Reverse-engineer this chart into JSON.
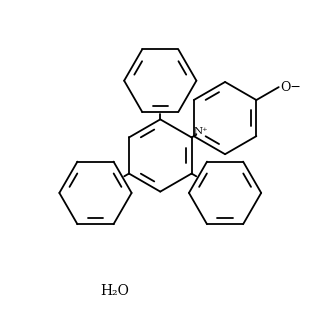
{
  "bg_color": "#ffffff",
  "line_color": "#000000",
  "lw": 1.3,
  "figsize": [
    3.27,
    3.11
  ],
  "dpi": 100,
  "water_label": "H₂O",
  "N_plus_label": "N⁺",
  "O_minus_label": "O−"
}
